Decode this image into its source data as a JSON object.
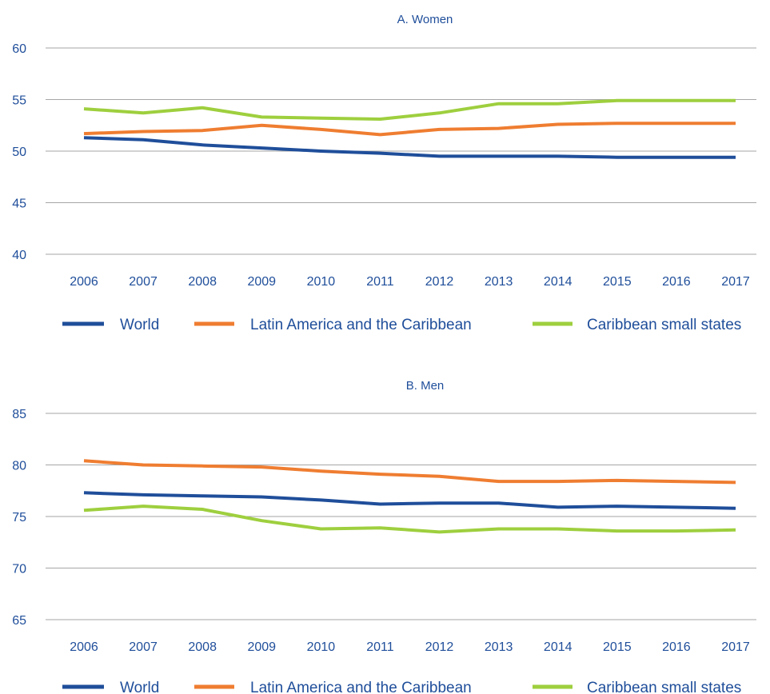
{
  "chart_data": [
    {
      "type": "line",
      "title": "A. Women",
      "categories": [
        "2006",
        "2007",
        "2008",
        "2009",
        "2010",
        "2011",
        "2012",
        "2013",
        "2014",
        "2015",
        "2016",
        "2017"
      ],
      "yticks": [
        40,
        45,
        50,
        55,
        60
      ],
      "ylim": [
        40,
        60
      ],
      "grid": true,
      "legend_position": "bottom",
      "series": [
        {
          "name": "World",
          "color": "#1f4e9a",
          "values": [
            51.3,
            51.1,
            50.6,
            50.3,
            50.0,
            49.8,
            49.5,
            49.5,
            49.5,
            49.4,
            49.4,
            49.4
          ]
        },
        {
          "name": "Latin America and the Caribbean",
          "color": "#ef7d31",
          "values": [
            51.7,
            51.9,
            52.0,
            52.5,
            52.1,
            51.6,
            52.1,
            52.2,
            52.6,
            52.7,
            52.7,
            52.7
          ]
        },
        {
          "name": "Caribbean small states",
          "color": "#9ecf3e",
          "values": [
            54.1,
            53.7,
            54.2,
            53.3,
            53.2,
            53.1,
            53.7,
            54.6,
            54.6,
            54.9,
            54.9,
            54.9
          ]
        }
      ]
    },
    {
      "type": "line",
      "title": "B. Men",
      "categories": [
        "2006",
        "2007",
        "2008",
        "2009",
        "2010",
        "2011",
        "2012",
        "2013",
        "2014",
        "2015",
        "2016",
        "2017"
      ],
      "yticks": [
        65,
        70,
        75,
        80,
        85
      ],
      "ylim": [
        65,
        85
      ],
      "grid": true,
      "legend_position": "bottom",
      "series": [
        {
          "name": "World",
          "color": "#1f4e9a",
          "values": [
            77.3,
            77.1,
            77.0,
            76.9,
            76.6,
            76.2,
            76.3,
            76.3,
            75.9,
            76.0,
            75.9,
            75.8
          ]
        },
        {
          "name": "Latin America and the Caribbean",
          "color": "#ef7d31",
          "values": [
            80.4,
            80.0,
            79.9,
            79.8,
            79.4,
            79.1,
            78.9,
            78.4,
            78.4,
            78.5,
            78.4,
            78.3
          ]
        },
        {
          "name": "Caribbean small states",
          "color": "#9ecf3e",
          "values": [
            75.6,
            76.0,
            75.7,
            74.6,
            73.8,
            73.9,
            73.5,
            73.8,
            73.8,
            73.6,
            73.6,
            73.7
          ]
        }
      ]
    }
  ]
}
